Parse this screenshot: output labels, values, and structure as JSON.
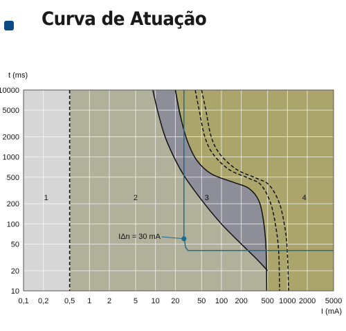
{
  "header": {
    "title": "Curva de Atuação"
  },
  "chart_data": {
    "type": "area",
    "title": "Curva de Atuação",
    "xlabel": "I (mA)",
    "ylabel": "t (ms)",
    "x_scale": "log",
    "y_scale": "log",
    "xlim": [
      0.1,
      5000
    ],
    "ylim": [
      10,
      10000
    ],
    "x_ticks": [
      0.1,
      0.2,
      0.5,
      1,
      2,
      5,
      10,
      20,
      50,
      100,
      200,
      500,
      1000,
      2000,
      5000
    ],
    "x_tick_labels": [
      "0,1",
      "0,2",
      "0,5",
      "1",
      "2",
      "5",
      "10",
      "20",
      "50",
      "100",
      "200",
      "500",
      "1000",
      "2000",
      "5000"
    ],
    "y_ticks": [
      10,
      20,
      50,
      100,
      200,
      500,
      1000,
      2000,
      5000,
      10000
    ],
    "y_tick_labels": [
      "10",
      "20",
      "50",
      "100",
      "200",
      "500",
      "1000",
      "2000",
      "5000",
      "10000"
    ],
    "grid": true,
    "zones": [
      {
        "label": "1",
        "x_range": [
          0.1,
          0.5
        ],
        "color": "#d6d6d6"
      },
      {
        "label": "2",
        "x_range": [
          0.5,
          500
        ],
        "color": "#b1b19b"
      },
      {
        "label": "4",
        "x_range": [
          500,
          5000
        ],
        "color": "#aba56c"
      }
    ],
    "zone_label_positions": [
      {
        "label": "1",
        "x": 0.22,
        "y": 250
      },
      {
        "label": "2",
        "x": 5,
        "y": 250
      },
      {
        "label": "3",
        "x": 60,
        "y": 250
      },
      {
        "label": "4",
        "x": 1800,
        "y": 250
      }
    ],
    "boundary_5mA_mark": 0.5,
    "series": [
      {
        "role": "dark_band_left_boundary",
        "style": "solid",
        "points": [
          [
            9.1,
            10000
          ],
          [
            11,
            4500
          ],
          [
            14,
            2000
          ],
          [
            20,
            900
          ],
          [
            28,
            500
          ],
          [
            45,
            260
          ],
          [
            70,
            150
          ],
          [
            110,
            90
          ],
          [
            200,
            50
          ],
          [
            340,
            30
          ],
          [
            500,
            20
          ]
        ]
      },
      {
        "role": "dark_band_right_boundary",
        "style": "solid",
        "points": [
          [
            20,
            10000
          ],
          [
            24,
            4000
          ],
          [
            30,
            1800
          ],
          [
            42,
            900
          ],
          [
            70,
            560
          ],
          [
            150,
            420
          ],
          [
            260,
            340
          ],
          [
            370,
            220
          ],
          [
            440,
            100
          ],
          [
            475,
            40
          ],
          [
            485,
            10
          ]
        ]
      },
      {
        "role": "wide_zone_boundary",
        "style": "solid",
        "points": [
          [
            20,
            10000
          ],
          [
            21.5,
            6800
          ],
          [
            23,
            4800
          ],
          [
            24,
            4000
          ]
        ]
      },
      {
        "role": "dashed_curve_1",
        "style": "dashed",
        "points": [
          [
            40,
            10000
          ],
          [
            46,
            5000
          ],
          [
            56,
            2000
          ],
          [
            75,
            1100
          ],
          [
            130,
            650
          ],
          [
            260,
            480
          ],
          [
            400,
            380
          ],
          [
            560,
            200
          ],
          [
            680,
            80
          ],
          [
            740,
            35
          ],
          [
            760,
            10
          ]
        ]
      },
      {
        "role": "dashed_curve_2",
        "style": "dashed",
        "points": [
          [
            50,
            10000
          ],
          [
            58,
            5000
          ],
          [
            70,
            2000
          ],
          [
            95,
            1100
          ],
          [
            170,
            650
          ],
          [
            340,
            480
          ],
          [
            530,
            380
          ],
          [
            760,
            200
          ],
          [
            930,
            80
          ],
          [
            1000,
            35
          ],
          [
            1040,
            10
          ]
        ]
      },
      {
        "role": "setpoint_30mA",
        "color": "#1e6b91",
        "style": "solid",
        "points": [
          [
            27,
            10000
          ],
          [
            27,
            65
          ],
          [
            28.5,
            45
          ],
          [
            31,
            40
          ],
          [
            200,
            40
          ],
          [
            5000,
            40
          ]
        ]
      }
    ],
    "annotations": [
      {
        "text": "IΔn = 30 mA",
        "x": 27,
        "y": 60,
        "marker": "dot"
      }
    ]
  }
}
